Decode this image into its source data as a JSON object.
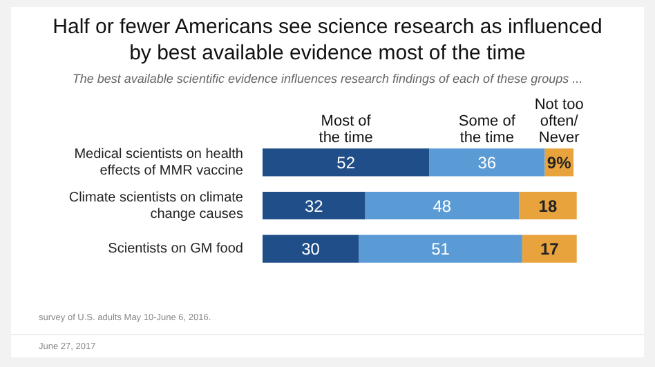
{
  "chart_data": {
    "type": "bar",
    "orientation": "horizontal",
    "stacked": true,
    "title": "Half or fewer Americans see science research as influenced by best available evidence most of the time",
    "subtitle": "The best available scientific evidence influences research findings of each of these groups ...",
    "categories": [
      "Medical scientists on health effects of MMR vaccine",
      "Climate scientists on climate change causes",
      "Scientists on GM food"
    ],
    "series": [
      {
        "name": "Most of the time",
        "color": "#1f4e89",
        "values": [
          52,
          32,
          30
        ],
        "value_labels": [
          "52",
          "32",
          "30"
        ]
      },
      {
        "name": "Some of the time",
        "color": "#5b9bd5",
        "values": [
          36,
          48,
          51
        ],
        "value_labels": [
          "36",
          "48",
          "51"
        ]
      },
      {
        "name": "Not too often/ Never",
        "color": "#e8a33d",
        "values": [
          9,
          18,
          17
        ],
        "value_labels": [
          "9%",
          "18",
          "17"
        ]
      }
    ],
    "annotations": [
      "survey of U.S. adults May 10-June 6, 2016.",
      "June 27, 2017"
    ]
  }
}
